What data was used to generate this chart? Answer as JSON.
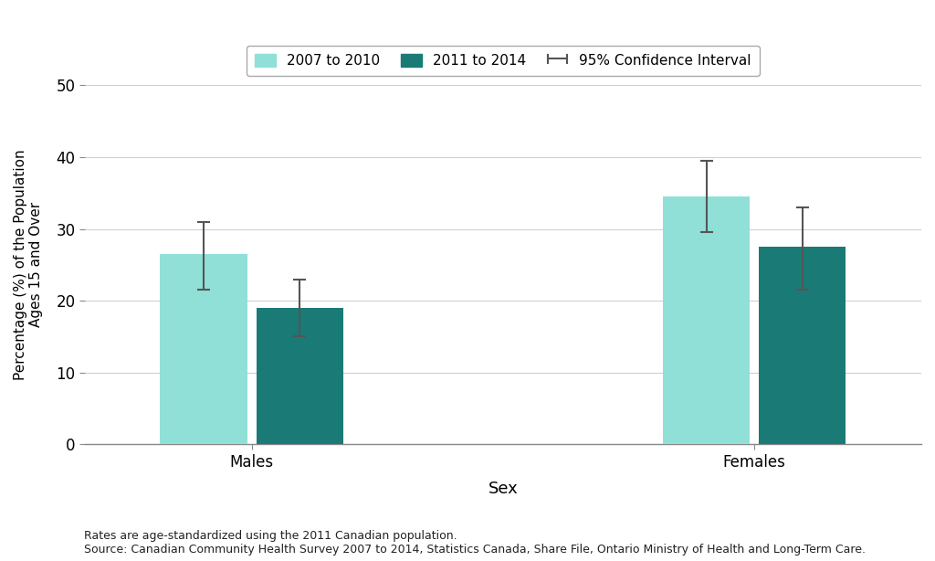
{
  "categories": [
    "Males",
    "Females"
  ],
  "values_2007": [
    26.5,
    34.5
  ],
  "values_2011": [
    19.0,
    27.5
  ],
  "ci_2007_lower": [
    21.5,
    29.5
  ],
  "ci_2007_upper": [
    31.0,
    39.5
  ],
  "ci_2011_lower": [
    15.0,
    21.5
  ],
  "ci_2011_upper": [
    23.0,
    33.0
  ],
  "color_2007": "#90E0D8",
  "color_2011": "#1A7B76",
  "bar_width": 0.38,
  "group_centers": [
    1.0,
    3.2
  ],
  "ylim": [
    0,
    50
  ],
  "yticks": [
    0,
    10,
    20,
    30,
    40,
    50
  ],
  "xlabel": "Sex",
  "ylabel": "Percentage (%) of the Population\nAges 15 and Over",
  "legend_label_2007": "2007 to 2010",
  "legend_label_2011": "2011 to 2014",
  "legend_ci": "95% Confidence Interval",
  "footnote1": "Rates are age-standardized using the 2011 Canadian population.",
  "footnote2": "Source: Canadian Community Health Survey 2007 to 2014, Statistics Canada, Share File, Ontario Ministry of Health and Long-Term Care.",
  "background_color": "#ffffff",
  "grid_color": "#d0d0d0",
  "ci_color": "#555555",
  "spine_color": "#888888",
  "xlabel_fontsize": 13,
  "ylabel_fontsize": 11,
  "tick_fontsize": 12,
  "legend_fontsize": 11,
  "footnote_fontsize": 9
}
